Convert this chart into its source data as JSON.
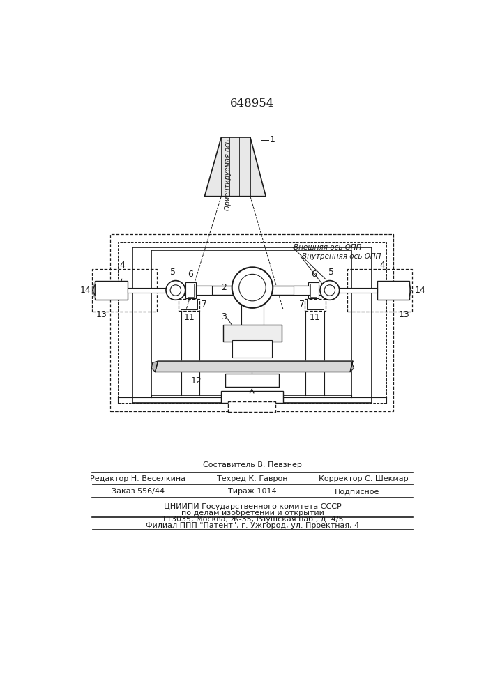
{
  "title": "648954",
  "bg_color": "#ffffff",
  "lc": "#1a1a1a",
  "footer": {
    "sestavitel": "Составитель В. Певзнер",
    "redaktor": "Редактор Н. Веселкина",
    "tehred": "Техред К. Гаврон",
    "korrektor": "Корректор С. Шекмар",
    "zakaz": "Заказ 556/44",
    "tirazh": "Тираж 1014",
    "podpisnoe": "Подписное",
    "cniiipi": "ЦНИИПИ Государственного комитета СССР",
    "dela": "по делам изобретений и открытий",
    "addr": "113035, Москва, Ж-35, Раушская наб., д. 4/5",
    "filial": "Филиал ППП \"Патент\", г. Ужгород, ул. Проектная, 4"
  },
  "axis_labels": {
    "outer": "Внешняя ось ОПП",
    "inner": "Внутренняя ось ОПП",
    "orient": "Ориентируемая ось"
  }
}
